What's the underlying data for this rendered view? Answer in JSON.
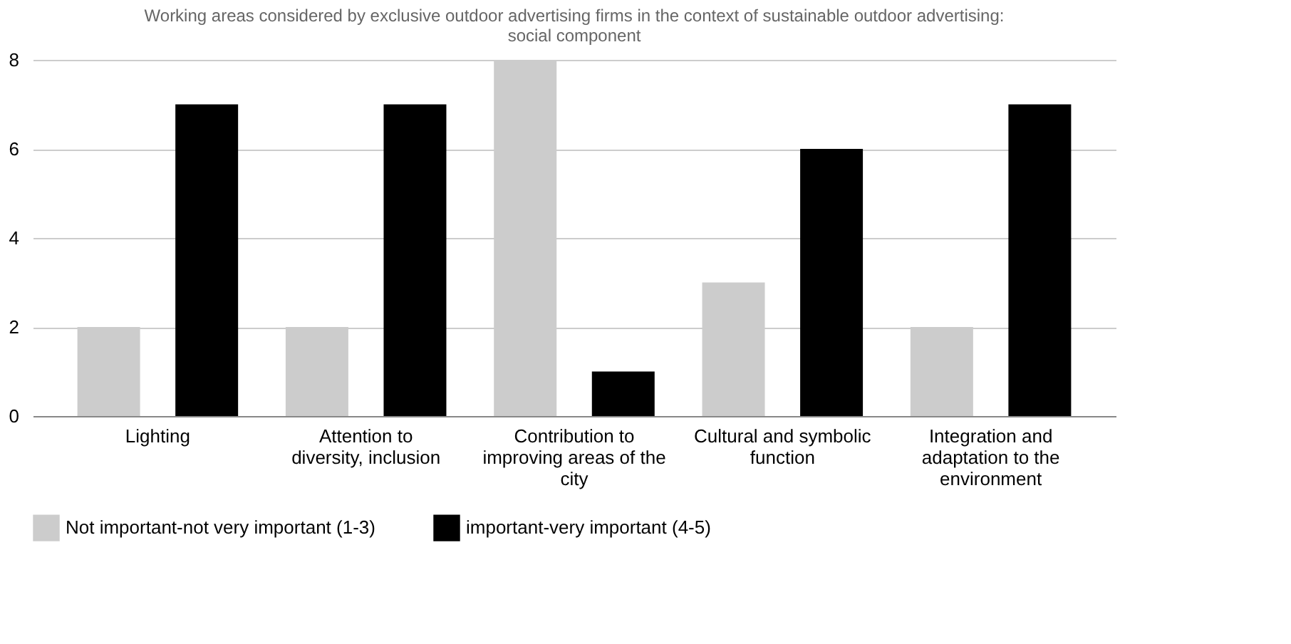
{
  "chart_data": {
    "type": "bar",
    "title": "Working areas considered by exclusive outdoor advertising firms in the context of sustainable outdoor advertising: social component",
    "categories": [
      "Lighting",
      "Attention to diversity, inclusion",
      "Contribution to improving areas of the city",
      "Cultural and symbolic function",
      "Integration and adaptation to the environment"
    ],
    "series": [
      {
        "name": "Not important-not very important (1-3)",
        "color": "#cccccc",
        "values": [
          2,
          2,
          8,
          3,
          2
        ]
      },
      {
        "name": "important-very important (4-5)",
        "color": "#000000",
        "values": [
          7,
          7,
          1,
          6,
          7
        ]
      }
    ],
    "ylim": [
      0,
      8
    ],
    "yticks": [
      0,
      2,
      4,
      6,
      8
    ],
    "grid": "y",
    "legend": "bottom"
  }
}
